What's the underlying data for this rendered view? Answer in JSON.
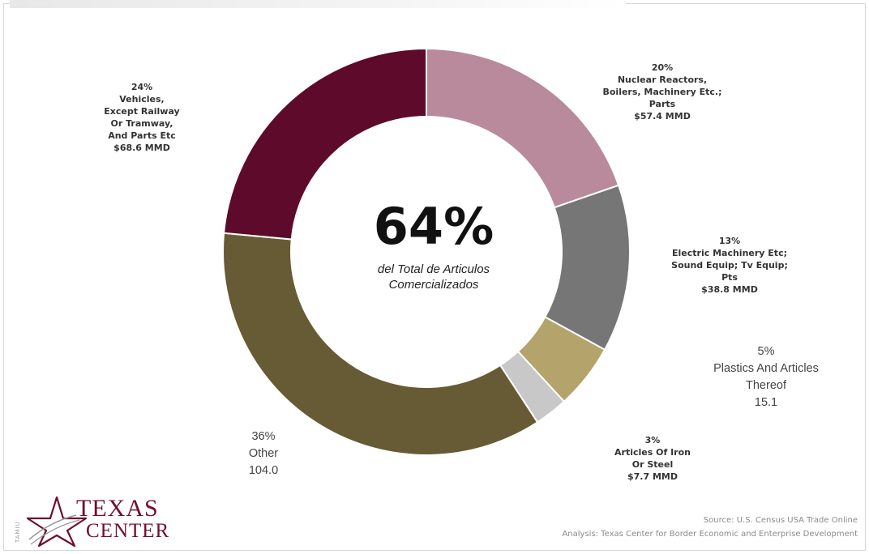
{
  "chart_data": {
    "type": "pie",
    "variant": "donut",
    "slices": [
      {
        "percent_label": "20%",
        "name_lines": [
          "Nuclear Reactors,",
          "Boilers, Machinery  Etc.;",
          "Parts"
        ],
        "amount": "$57.4 MMD",
        "value": 57.4,
        "color": "#b98a9b",
        "label_style": "bold"
      },
      {
        "percent_label": "13%",
        "name_lines": [
          "Electric Machinery  Etc;",
          "Sound  Equip; Tv Equip;",
          "Pts"
        ],
        "amount": "$38.8 MMD",
        "value": 38.8,
        "color": "#767676",
        "label_style": "bold"
      },
      {
        "percent_label": "5%",
        "name_lines": [
          "Plastics And Articles",
          "Thereof"
        ],
        "amount": "15.1",
        "value": 15.1,
        "color": "#b4a36a",
        "label_style": "plain"
      },
      {
        "percent_label": "3%",
        "name_lines": [
          "Articles Of Iron",
          "Or Steel"
        ],
        "amount": "$7.7 MMD",
        "value": 7.7,
        "color": "#c8c8c8",
        "label_style": "bold"
      },
      {
        "percent_label": "36%",
        "name_lines": [
          "Other"
        ],
        "amount": "104.0",
        "value": 104.0,
        "color": "#665b34",
        "label_style": "plain"
      },
      {
        "percent_label": "24%",
        "name_lines": [
          "Vehicles,",
          "Except Railway",
          "Or Tramway,",
          "And Parts Etc"
        ],
        "amount": "$68.6 MMD",
        "value": 68.6,
        "color": "#5e0a2a",
        "label_style": "bold"
      }
    ],
    "center_value": "64%",
    "center_text": [
      "del Total de Articulos",
      "Comercializados"
    ]
  },
  "logo": {
    "side_text": "TAMIU",
    "line1": "TEXAS",
    "line2": "CENTER"
  },
  "source": {
    "line1": "Source:  U.S. Census  USA Trade  Online",
    "line2": "Analysis: Texas Center for Border Economic  and  Enterprise Development"
  }
}
